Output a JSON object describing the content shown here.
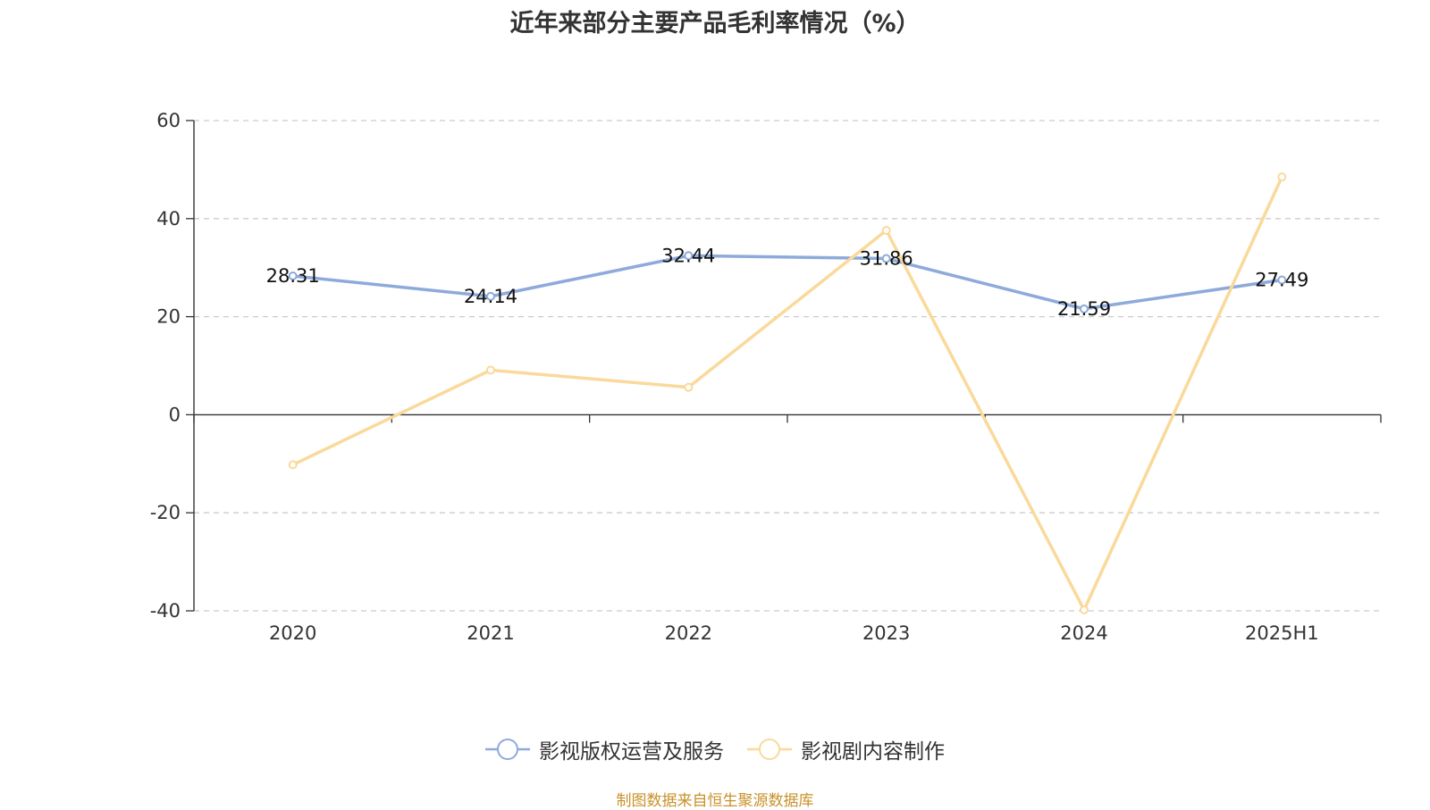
{
  "chart_data": {
    "type": "line",
    "title": "近年来部分主要产品毛利率情况（%）",
    "categories": [
      "2020",
      "2021",
      "2022",
      "2023",
      "2024",
      "2025H1"
    ],
    "series": [
      {
        "name": "影视版权运营及服务",
        "color": "#8eaadb",
        "values": [
          28.31,
          24.14,
          32.44,
          31.86,
          21.59,
          27.49
        ],
        "labels": [
          "28.31",
          "24.14",
          "32.44",
          "31.86",
          "21.59",
          "27.49"
        ]
      },
      {
        "name": "影视剧内容制作",
        "color": "#fad99a",
        "values": [
          -10.2,
          9.1,
          5.6,
          37.6,
          -39.8,
          48.5
        ]
      }
    ],
    "ylim": [
      -40,
      60
    ],
    "yticks": [
      -40,
      -20,
      0,
      20,
      40,
      60
    ],
    "xlabel": "",
    "ylabel": "",
    "grid": "horizontal dashed",
    "legend": "bottom-center"
  },
  "source": "制图数据来自恒生聚源数据库"
}
